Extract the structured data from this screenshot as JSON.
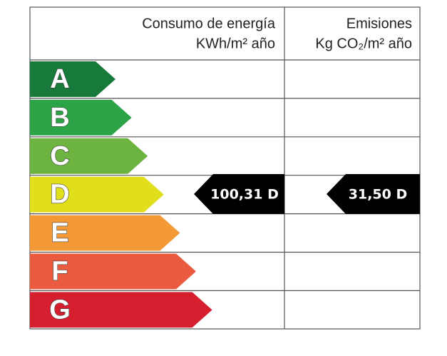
{
  "header": {
    "energy_title": "Consumo de energía",
    "energy_unit": "KWh/m² año",
    "emission_title": "Emisiones",
    "emission_unit": "Kg CO₂/m² año"
  },
  "ratings": [
    {
      "letter": "A",
      "color": "#177a3a"
    },
    {
      "letter": "B",
      "color": "#2ca347"
    },
    {
      "letter": "C",
      "color": "#6cb33f"
    },
    {
      "letter": "D",
      "color": "#e1df1c"
    },
    {
      "letter": "E",
      "color": "#f39a36"
    },
    {
      "letter": "F",
      "color": "#ea5a3f"
    },
    {
      "letter": "G",
      "color": "#d61f2e"
    }
  ],
  "consumption": {
    "label": "100,31 D"
  },
  "emission": {
    "label": "31,50 D"
  }
}
